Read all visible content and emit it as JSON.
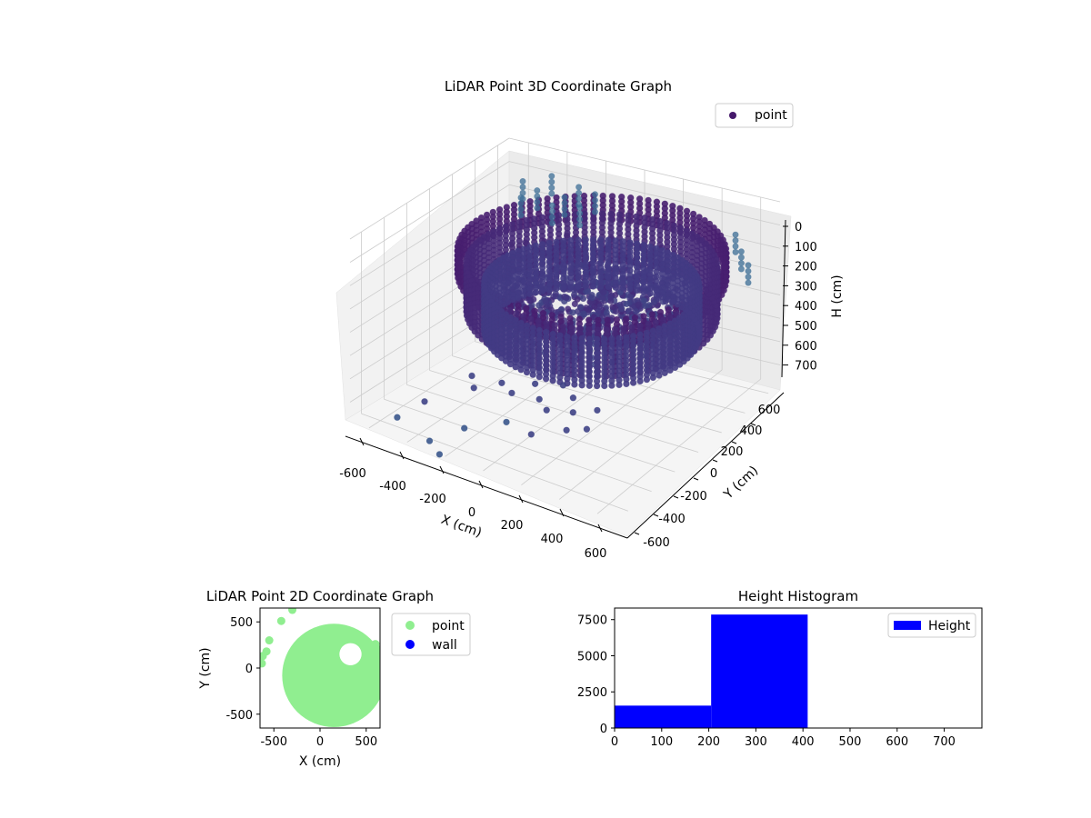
{
  "chart_data": [
    {
      "type": "scatter",
      "projection": "3d",
      "title": "LiDAR Point 3D Coordinate Graph",
      "xlabel": "X (cm)",
      "ylabel": "Y (cm)",
      "zlabel": "H (cm)",
      "xlim": [
        -700,
        700
      ],
      "ylim": [
        -700,
        700
      ],
      "zlim": [
        780,
        0
      ],
      "x_ticks": [
        "-600",
        "-400",
        "-200",
        "0",
        "200",
        "400",
        "600"
      ],
      "y_ticks": [
        "-600",
        "-400",
        "-200",
        "0",
        "200",
        "400",
        "600"
      ],
      "z_ticks": [
        "0",
        "100",
        "200",
        "300",
        "400",
        "500",
        "600",
        "700"
      ],
      "legend": [
        {
          "label": "point",
          "color": "#46196b"
        }
      ],
      "legend_position": "upper right",
      "grid": true,
      "colormap": "viridis (by height)",
      "rings": [
        {
          "radius": 600,
          "h_top": 120,
          "h_bottom": 230,
          "color": "#481f70"
        },
        {
          "radius": 560,
          "h_top": 180,
          "h_bottom": 380,
          "color": "#462a78"
        },
        {
          "radius": 480,
          "h_top": 260,
          "h_bottom": 470,
          "color": "#423b84"
        }
      ],
      "floor_points": [
        [
          -420,
          -100,
          700
        ],
        [
          -350,
          -200,
          700
        ],
        [
          -300,
          -40,
          720
        ],
        [
          -200,
          -120,
          710
        ],
        [
          -150,
          0,
          700
        ],
        [
          -80,
          -80,
          720
        ],
        [
          -40,
          60,
          700
        ],
        [
          0,
          -150,
          720
        ],
        [
          60,
          -20,
          700
        ],
        [
          120,
          -120,
          710
        ],
        [
          170,
          -260,
          720
        ],
        [
          210,
          -60,
          700
        ],
        [
          -500,
          -380,
          740
        ],
        [
          -250,
          -450,
          760
        ],
        [
          -120,
          -300,
          750
        ],
        [
          40,
          -350,
          740
        ],
        [
          240,
          -200,
          720
        ],
        [
          -560,
          -520,
          780
        ],
        [
          -330,
          -620,
          780
        ],
        [
          -230,
          -700,
          780
        ]
      ],
      "wall_points": [
        [
          -600,
          650,
          150
        ],
        [
          -580,
          600,
          200
        ],
        [
          -520,
          640,
          170
        ],
        [
          -480,
          700,
          120
        ],
        [
          -430,
          620,
          210
        ],
        [
          -390,
          660,
          180
        ],
        [
          -340,
          700,
          140
        ],
        [
          -300,
          640,
          200
        ],
        [
          -250,
          690,
          150
        ],
        [
          500,
          650,
          160
        ],
        [
          560,
          600,
          200
        ],
        [
          620,
          560,
          230
        ]
      ]
    },
    {
      "type": "scatter",
      "title": "LiDAR Point 2D Coordinate Graph",
      "xlabel": "X (cm)",
      "ylabel": "Y (cm)",
      "xlim": [
        -650,
        650
      ],
      "ylim": [
        -650,
        650
      ],
      "x_ticks": [
        "-500",
        "0",
        "500"
      ],
      "y_ticks": [
        "500",
        "0",
        "-500"
      ],
      "series": [
        {
          "name": "point",
          "color": "#90ee90"
        },
        {
          "name": "wall",
          "color": "#0000ff"
        }
      ],
      "legend_position": "outside right",
      "point_cloud_center": [
        150,
        -80
      ],
      "point_cloud_radius": 560,
      "hole_center": [
        330,
        150
      ],
      "hole_radius": 120,
      "stray_points": [
        [
          -620,
          130
        ],
        [
          -580,
          180
        ],
        [
          -550,
          300
        ],
        [
          -420,
          510
        ],
        [
          -300,
          630
        ],
        [
          -630,
          50
        ],
        [
          600,
          260
        ],
        [
          640,
          200
        ],
        [
          610,
          120
        ]
      ]
    },
    {
      "type": "bar",
      "title": "Height Histogram",
      "xlabel": "",
      "ylabel": "",
      "xlim": [
        0,
        780
      ],
      "ylim": [
        0,
        8300
      ],
      "x_ticks": [
        "0",
        "100",
        "200",
        "300",
        "400",
        "500",
        "600",
        "700"
      ],
      "y_ticks": [
        "0",
        "2500",
        "5000",
        "7500"
      ],
      "bins": [
        {
          "start": 0,
          "end": 205,
          "count": 1550
        },
        {
          "start": 205,
          "end": 410,
          "count": 7850
        },
        {
          "start": 410,
          "end": 615,
          "count": 30
        },
        {
          "start": 615,
          "end": 780,
          "count": 30
        }
      ],
      "color": "#0000ff",
      "legend": [
        {
          "label": "Height",
          "color": "#0000ff"
        }
      ],
      "legend_position": "upper right"
    }
  ]
}
